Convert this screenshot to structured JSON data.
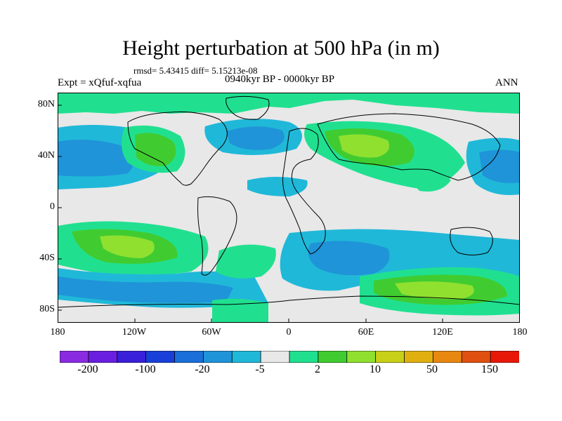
{
  "header": {
    "title": "Height perturbation at 500 hPa (in m)",
    "stats": "rmsd= 5.43415 diff= 5.15213e-08",
    "experiment": "Expt = xQfuf-xqfua",
    "period": "0940kyr BP - 0000kyr BP",
    "season": "ANN"
  },
  "map": {
    "projection": "cylindrical-equidistant",
    "background_color": "#e8e8e8",
    "coastline_color": "#000000",
    "lat_labels": [
      "80N",
      "40N",
      "0",
      "40S",
      "80S"
    ],
    "lon_labels": [
      "180",
      "120W",
      "60W",
      "0",
      "60E",
      "120E",
      "180"
    ]
  },
  "colorbar": {
    "colors": [
      "#8a2be2",
      "#6a1fe0",
      "#3a1fd8",
      "#1840d8",
      "#1a6fd8",
      "#1f94d8",
      "#20b8d8",
      "#e8e8e8",
      "#20e090",
      "#40cc30",
      "#90e030",
      "#c8d018",
      "#e0b010",
      "#e88810",
      "#e05010",
      "#e81808"
    ],
    "tick_labels": [
      "-200",
      "-100",
      "-20",
      "-5",
      "2",
      "10",
      "50",
      "150"
    ]
  }
}
